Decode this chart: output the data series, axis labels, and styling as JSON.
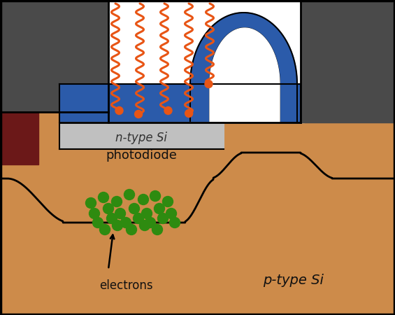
{
  "bg_color": "#CD8B4A",
  "white_color": "#FFFFFF",
  "dark_gray": "#4A4A4A",
  "dark_red": "#6B1818",
  "light_gray": "#C0C0C0",
  "blue_gate": "#2B5BAA",
  "black": "#000000",
  "photon_color": "#E85515",
  "electron_color": "#2E8B10",
  "n_type_label": "n-type Si",
  "photodiode_label": "photodiode",
  "electrons_label": "electrons",
  "p_type_label": "p-type Si",
  "figsize": [
    5.65,
    4.5
  ],
  "dpi": 100
}
